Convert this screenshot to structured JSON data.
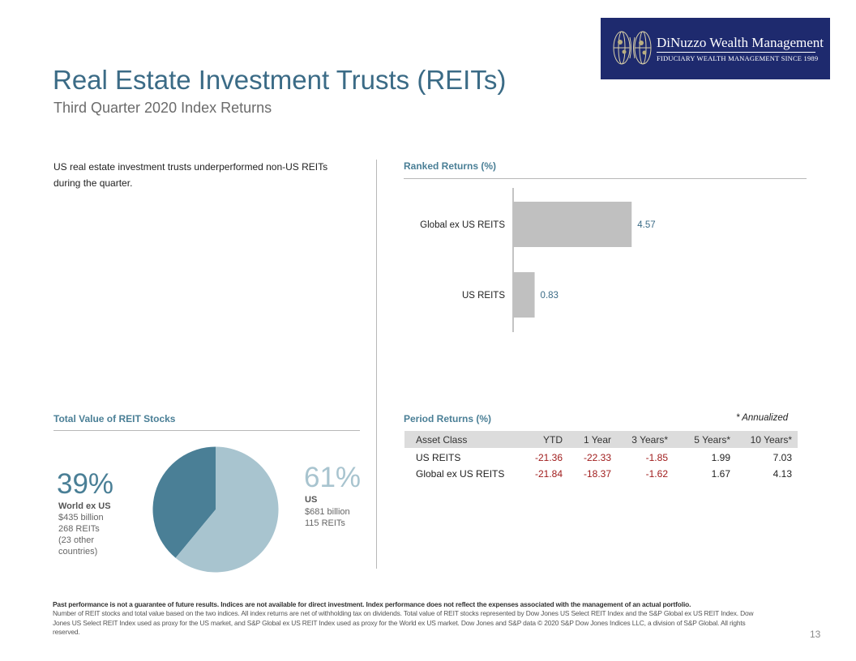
{
  "logo": {
    "name": "DiNuzzo Wealth Management",
    "tagline": "FIDUCIARY WEALTH MANAGEMENT SINCE 1989",
    "bg_color": "#1e2a6e"
  },
  "header": {
    "title": "Real Estate Investment Trusts (REITs)",
    "subtitle": "Third Quarter 2020 Index Returns"
  },
  "intro": "US real estate investment trusts underperformed  non-US REITs  during the quarter.",
  "ranked_returns": {
    "heading": "Ranked Returns (%)"
  },
  "total_value": {
    "heading": "Total Value of REIT Stocks",
    "world": {
      "pct": "39%",
      "label": "World ex US",
      "value": "$435 billion",
      "count": "268 REITs",
      "note_line1": "(23 other",
      "note_line2": "countries)",
      "color": "#4a7f96"
    },
    "us": {
      "pct": "61%",
      "label": "US",
      "value": "$681 billion",
      "count": "115 REITs",
      "color": "#a8c4cf"
    }
  },
  "period_returns": {
    "heading": "Period Returns (%)",
    "note": "* Annualized",
    "columns": [
      "Asset Class",
      "YTD",
      "1 Year",
      "3 Years*",
      "5 Years*",
      "10 Years*"
    ],
    "rows": [
      {
        "name": "US REITS",
        "values": [
          "-21.36",
          "-22.33",
          "-1.85",
          "1.99",
          "7.03"
        ]
      },
      {
        "name": "Global ex US REITS",
        "values": [
          "-21.84",
          "-18.37",
          "-1.62",
          "1.67",
          "4.13"
        ]
      }
    ]
  },
  "chart_data": [
    {
      "type": "bar",
      "orientation": "horizontal",
      "title": "Ranked Returns (%)",
      "categories": [
        "Global ex US REITS",
        "US REITS"
      ],
      "values": [
        4.57,
        0.83
      ],
      "data_labels": [
        "4.57",
        "0.83"
      ],
      "bar_color": "#c0c0c0",
      "label_color": "#3b6b86",
      "xlim": [
        0,
        10
      ]
    },
    {
      "type": "pie",
      "title": "Total Value of REIT Stocks",
      "categories": [
        "World ex US",
        "US"
      ],
      "values": [
        39,
        61
      ],
      "colors": [
        "#4a7f96",
        "#a8c4cf"
      ]
    }
  ],
  "footer": {
    "disclaimer_bold": "Past performance is not a guarantee of future results. Indices are not available for direct investment. Index performance does not reflect the expenses associated with the management of an actual portfolio.",
    "disclaimer_text": "Number of REIT stocks and total value based on the two indices. All index returns are net of withholding tax on dividends. Total value of REIT stocks represented by Dow Jones US Select REIT Index and the S&P Global ex US REIT Index. Dow Jones US Select REIT Index used as proxy for the US market, and S&P Global ex US REIT Index used as proxy for the World ex US market. Dow Jones and S&P data © 2020 S&P Dow Jones Indices LLC, a division of S&P Global. All rights reserved.",
    "page_number": "13"
  }
}
